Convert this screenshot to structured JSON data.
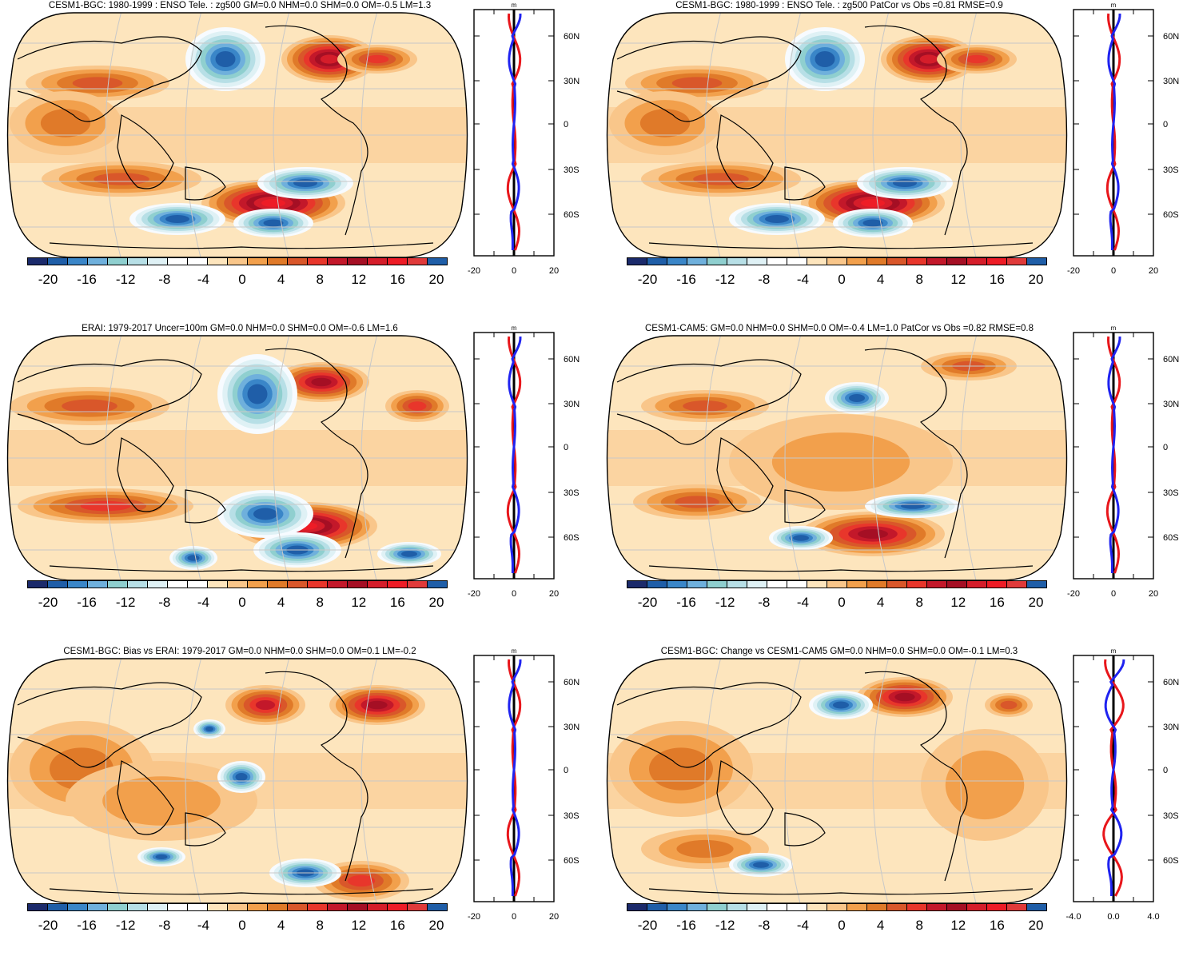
{
  "figure": {
    "colors": {
      "negative": [
        "#1b2a6b",
        "#1f5ea8",
        "#3a86c8",
        "#6fb0dc",
        "#8fcfcf",
        "#b7dfe6",
        "#dff1f5",
        "#f7fbff"
      ],
      "neutral": "#ffffff",
      "positive": [
        "#fde5bd",
        "#f9c68a",
        "#f2a04c",
        "#e07a29",
        "#d9572a",
        "#e8362b",
        "#c3182a",
        "#a50f24",
        "#d51d2a",
        "#ee1c26"
      ],
      "model_line": "#e8161b",
      "obs_line": "#1f23f0",
      "gridline": "#c8c8c8"
    },
    "colorbar_labels": [
      "-20",
      "-16",
      "-12",
      "-8",
      "-4",
      "0",
      "4",
      "8",
      "12",
      "16",
      "20"
    ],
    "lat_labels": [
      "60N",
      "30N",
      "0",
      "30S",
      "60S"
    ],
    "profile_units": "m"
  },
  "panels": [
    {
      "title": "CESM1-BGC: 1980-1999 : ENSO Tele. : zg500 GM=0.0 NHM=0.0 SHM=0.0 OM=-0.5 LM=1.3",
      "xticks": [
        "-20",
        "0",
        "20"
      ]
    },
    {
      "title": "CESM1-BGC: 1980-1999 : ENSO Tele. : zg500 PatCor vs Obs =0.81 RMSE=0.9",
      "xticks": [
        "-20",
        "0",
        "20"
      ]
    },
    {
      "title": "ERAI: 1979-2017 Uncer=100m GM=0.0 NHM=0.0 SHM=0.0 OM=-0.6 LM=1.6",
      "xticks": [
        "-20",
        "0",
        "20"
      ]
    },
    {
      "title": "CESM1-CAM5: GM=0.0 NHM=0.0 SHM=0.0 OM=-0.4 LM=1.0 PatCor vs Obs =0.82 RMSE=0.8",
      "xticks": [
        "-20",
        "0",
        "20"
      ]
    },
    {
      "title": "CESM1-BGC: Bias vs ERAI: 1979-2017 GM=0.0 NHM=0.0 SHM=0.0 OM=0.1 LM=-0.2",
      "xticks": [
        "-20",
        "0",
        "20"
      ]
    },
    {
      "title": "CESM1-BGC: Change vs CESM1-CAM5 GM=0.0 NHM=0.0 SHM=0.0 OM=-0.1 LM=0.3",
      "xticks": [
        "-4.0",
        "0.0",
        "4.0"
      ]
    }
  ],
  "chart_data": [
    {
      "type": "heatmap",
      "title": "CESM1-BGC: 1980-1999 : ENSO Tele. : zg500 GM=0.0 NHM=0.0 SHM=0.0 OM=-0.5 LM=1.3",
      "variable": "zg500",
      "colorbar_range": [
        -20,
        20
      ],
      "profile_xlim": [
        -20,
        20
      ],
      "lat_ticks": [
        "60N",
        "30N",
        "0",
        "30S",
        "60S"
      ]
    },
    {
      "type": "heatmap",
      "title": "CESM1-BGC: 1980-1999 : ENSO Tele. : zg500 PatCor vs Obs =0.81 RMSE=0.9",
      "variable": "zg500",
      "colorbar_range": [
        -20,
        20
      ],
      "profile_xlim": [
        -20,
        20
      ],
      "lat_ticks": [
        "60N",
        "30N",
        "0",
        "30S",
        "60S"
      ]
    },
    {
      "type": "heatmap",
      "title": "ERAI: 1979-2017 Uncer=100m GM=0.0 NHM=0.0 SHM=0.0 OM=-0.6 LM=1.6",
      "variable": "zg500",
      "colorbar_range": [
        -20,
        20
      ],
      "profile_xlim": [
        -20,
        20
      ],
      "lat_ticks": [
        "60N",
        "30N",
        "0",
        "30S",
        "60S"
      ]
    },
    {
      "type": "heatmap",
      "title": "CESM1-CAM5: GM=0.0 NHM=0.0 SHM=0.0 OM=-0.4 LM=1.0 PatCor vs Obs =0.82 RMSE=0.8",
      "variable": "zg500",
      "colorbar_range": [
        -20,
        20
      ],
      "profile_xlim": [
        -20,
        20
      ],
      "lat_ticks": [
        "60N",
        "30N",
        "0",
        "30S",
        "60S"
      ]
    },
    {
      "type": "heatmap",
      "title": "CESM1-BGC: Bias vs ERAI: 1979-2017 GM=0.0 NHM=0.0 SHM=0.0 OM=0.1 LM=-0.2",
      "variable": "zg500",
      "colorbar_range": [
        -20,
        20
      ],
      "profile_xlim": [
        -20,
        20
      ],
      "lat_ticks": [
        "60N",
        "30N",
        "0",
        "30S",
        "60S"
      ]
    },
    {
      "type": "heatmap",
      "title": "CESM1-BGC: Change vs CESM1-CAM5 GM=0.0 NHM=0.0 SHM=0.0 OM=-0.1 LM=0.3",
      "variable": "zg500",
      "colorbar_range": [
        -20,
        20
      ],
      "profile_xlim": [
        -4,
        4
      ],
      "lat_ticks": [
        "60N",
        "30N",
        "0",
        "30S",
        "60S"
      ]
    }
  ]
}
